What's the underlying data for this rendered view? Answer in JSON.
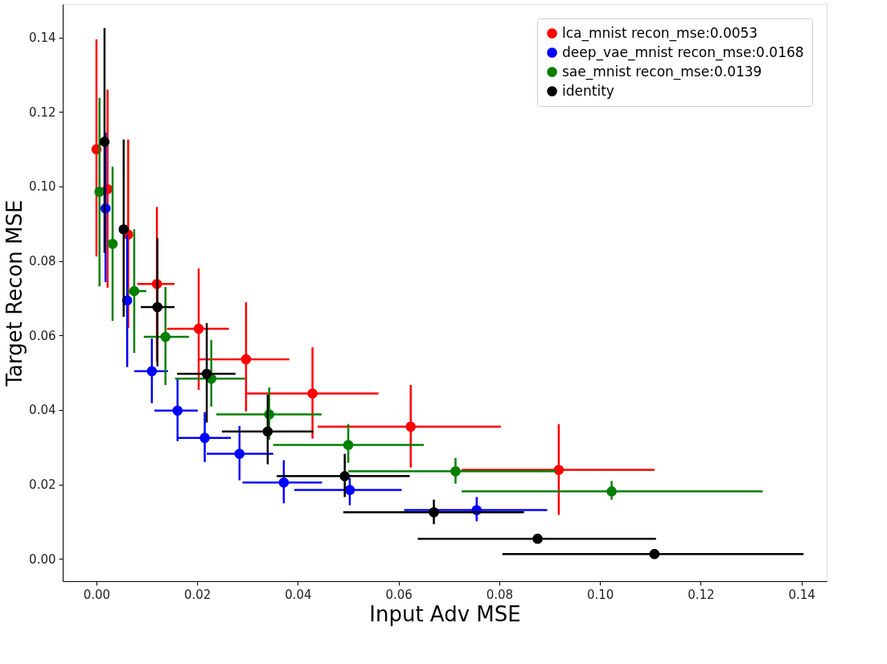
{
  "chart_data": {
    "type": "scatter",
    "xlabel": "Input Adv MSE",
    "ylabel": "Target Recon MSE",
    "xlim": [
      -0.0067,
      0.145
    ],
    "ylim": [
      -0.006,
      0.149
    ],
    "xticks": [
      {
        "value": 0,
        "label": "0.00"
      },
      {
        "value": 0.02,
        "label": "0.02"
      },
      {
        "value": 0.04,
        "label": "0.04"
      },
      {
        "value": 0.06,
        "label": "0.06"
      },
      {
        "value": 0.08,
        "label": "0.08"
      },
      {
        "value": 0.1,
        "label": "0.10"
      },
      {
        "value": 0.12,
        "label": "0.12"
      },
      {
        "value": 0.14,
        "label": "0.14"
      }
    ],
    "yticks": [
      {
        "value": 0,
        "label": "0.00"
      },
      {
        "value": 0.02,
        "label": "0.02"
      },
      {
        "value": 0.04,
        "label": "0.04"
      },
      {
        "value": 0.06,
        "label": "0.06"
      },
      {
        "value": 0.08,
        "label": "0.08"
      },
      {
        "value": 0.1,
        "label": "0.10"
      },
      {
        "value": 0.12,
        "label": "0.12"
      },
      {
        "value": 0.14,
        "label": "0.14"
      }
    ],
    "grid": false,
    "legend": "top right",
    "marker": "circle",
    "series": [
      {
        "name": "lca_mnist recon_mse:0.0053",
        "color": "#ff0000",
        "x": [
          0.0,
          0.0022,
          0.0063,
          0.012,
          0.0203,
          0.0297,
          0.0429,
          0.0624,
          0.0918
        ],
        "values": [
          0.11,
          0.0993,
          0.0871,
          0.0738,
          0.0618,
          0.0536,
          0.0444,
          0.0355,
          0.0239
        ],
        "xerrors": [
          null,
          null,
          null,
          [
            0.0081,
            0.0155
          ],
          [
            0.014,
            0.0263
          ],
          [
            0.0204,
            0.0383
          ],
          [
            0.0297,
            0.056
          ],
          [
            0.0439,
            0.0803
          ],
          [
            0.0725,
            0.1108
          ]
        ],
        "errors": [
          [
            0.0812,
            0.1395
          ],
          [
            0.0728,
            0.126
          ],
          [
            0.062,
            0.1126
          ],
          [
            0.053,
            0.0945
          ],
          [
            0.0454,
            0.078
          ],
          [
            0.0396,
            0.0689
          ],
          [
            0.0323,
            0.0568
          ],
          [
            0.0245,
            0.0467
          ],
          [
            0.0118,
            0.0362
          ]
        ]
      },
      {
        "name": "deep_vae_mnist recon_mse:0.0168",
        "color": "#0000ff",
        "x": [
          0.0018,
          0.0061,
          0.011,
          0.0161,
          0.0215,
          0.0284,
          0.0372,
          0.0503,
          0.0755
        ],
        "values": [
          0.0941,
          0.0694,
          0.0504,
          0.0398,
          0.0325,
          0.0282,
          0.0205,
          0.0185,
          0.0131
        ],
        "xerrors": [
          null,
          null,
          [
            0.0075,
            0.0142
          ],
          [
            0.0115,
            0.0201
          ],
          [
            0.016,
            0.0267
          ],
          [
            0.0219,
            0.0351
          ],
          [
            0.029,
            0.0448
          ],
          [
            0.0393,
            0.0606
          ],
          [
            0.0611,
            0.0895
          ]
        ],
        "errors": [
          [
            0.0743,
            0.1145
          ],
          [
            0.0515,
            0.087
          ],
          [
            0.0418,
            0.0592
          ],
          [
            0.0316,
            0.0482
          ],
          [
            0.026,
            0.0394
          ],
          [
            0.0211,
            0.0357
          ],
          [
            0.0149,
            0.0265
          ],
          [
            0.0144,
            0.0217
          ],
          [
            0.0101,
            0.0166
          ]
        ]
      },
      {
        "name": "sae_mnist recon_mse:0.0139",
        "color": "#008000",
        "x": [
          0.0006,
          0.0032,
          0.0075,
          0.0137,
          0.0228,
          0.0343,
          0.05,
          0.0713,
          0.1023
        ],
        "values": [
          0.0986,
          0.0846,
          0.0719,
          0.0596,
          0.0484,
          0.0388,
          0.0306,
          0.0235,
          0.0181
        ],
        "xerrors": [
          null,
          null,
          [
            0.0061,
            0.0099
          ],
          [
            0.0094,
            0.0184
          ],
          [
            0.0156,
            0.0295
          ],
          [
            0.0238,
            0.0447
          ],
          [
            0.0351,
            0.065
          ],
          [
            0.05,
            0.0913
          ],
          [
            0.0725,
            0.1323
          ]
        ],
        "errors": [
          [
            0.0732,
            0.1238
          ],
          [
            0.0639,
            0.1053
          ],
          [
            0.0553,
            0.0885
          ],
          [
            0.0467,
            0.073
          ],
          [
            0.0409,
            0.0588
          ],
          [
            0.032,
            0.046
          ],
          [
            0.0258,
            0.0362
          ],
          [
            0.0202,
            0.0271
          ],
          [
            0.0159,
            0.0209
          ]
        ]
      },
      {
        "name": "identity",
        "color": "#000000",
        "x": [
          0.0016,
          0.0054,
          0.0121,
          0.0219,
          0.034,
          0.0493,
          0.067,
          0.0876,
          0.1108
        ],
        "values": [
          0.112,
          0.0885,
          0.0676,
          0.0497,
          0.0342,
          0.0222,
          0.0125,
          0.0054,
          0.0013
        ],
        "xerrors": [
          null,
          null,
          [
            0.0088,
            0.0155
          ],
          [
            0.016,
            0.0276
          ],
          [
            0.0249,
            0.0431
          ],
          [
            0.0358,
            0.0622
          ],
          [
            0.049,
            0.0849
          ],
          [
            0.0638,
            0.1111
          ],
          [
            0.0806,
            0.1404
          ]
        ],
        "errors": [
          [
            0.0822,
            0.1425
          ],
          [
            0.065,
            0.1126
          ],
          [
            0.0517,
            0.0861
          ],
          [
            0.0366,
            0.0633
          ],
          [
            0.0254,
            0.0441
          ],
          [
            0.0166,
            0.0282
          ],
          [
            0.0093,
            0.0159
          ],
          null,
          null
        ]
      }
    ]
  }
}
